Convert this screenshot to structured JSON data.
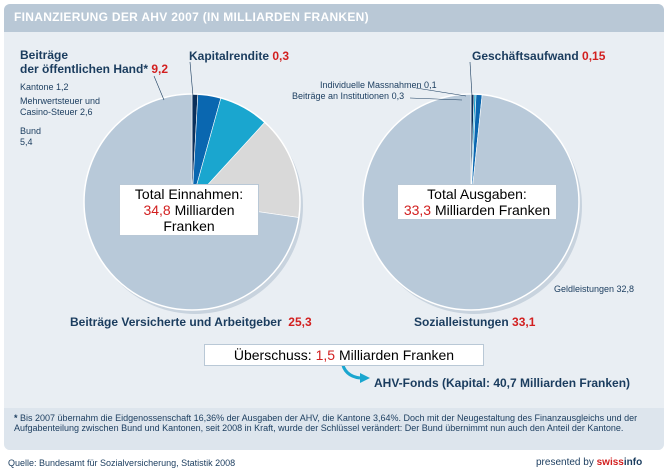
{
  "header": {
    "title": "FINANZIERUNG DER AHV 2007 (IN MILLIARDEN FRANKEN)"
  },
  "income": {
    "public_label_line1": "Beiträge",
    "public_label_line2": "der öffentlichen Hand*",
    "public_value": "9,2",
    "cantons_label": "Kantone 1,2",
    "vat_label_line1": "Mehrwertsteuer und",
    "vat_label_line2": "Casino-Steuer  2,6",
    "federal_label_line1": "Bund",
    "federal_label_line2": "5,4",
    "capital_label": "Kapitalrendite",
    "capital_value": "0,3",
    "contributions_label": "Beiträge Versicherte und Arbeitgeber",
    "contributions_value": "25,3",
    "total_line1": "Total Einnahmen:",
    "total_value": "34,8",
    "total_unit": "Milliarden Franken"
  },
  "expenses": {
    "admin_label": "Geschäftsaufwand",
    "admin_value": "0,15",
    "individual_label": "Individuelle Massnahmen 0,1",
    "institutions_label": "Beiträge an Institutionen 0,3",
    "cash_label": "Geldleistungen 32,8",
    "social_label": "Sozialleistungen",
    "social_value": "33,1",
    "total_line1": "Total Ausgaben:",
    "total_value": "33,3",
    "total_unit": "Milliarden Franken"
  },
  "surplus": {
    "label": "Überschuss:",
    "value": "1,5",
    "unit": "Milliarden Franken"
  },
  "fund": {
    "label": "AHV-Fonds (Kapital: 40,7 Milliarden Franken)"
  },
  "footnote": {
    "star": "*",
    "text": "Bis 2007 übernahm die Eidgenossenschaft 16,36% der Ausgaben der AHV, die Kantone 3,64%. Doch mit der Neugestaltung des Finanzausgleichs und der Aufgabenteilung zwischen Bund und Kantonen, seit 2008 in Kraft, wurde der Schlüssel verändert: Der Bund übernimmt nun auch den Anteil der Kantone."
  },
  "source": {
    "text": "Quelle: Bundesamt für Sozialversicherung, Statistik 2008"
  },
  "presented": {
    "prefix": "presented by ",
    "brand_red": "swiss",
    "brand_dark": "info"
  },
  "colors": {
    "pie_main": "#b8c9d9",
    "federal": "#d9d9d9",
    "vat": "#1aa6cf",
    "cantons": "#0a67b0",
    "capital": "#0b2f5a",
    "accent_red": "#d21f1f"
  },
  "chart_data": [
    {
      "type": "pie",
      "title": "Total Einnahmen: 34,8 Milliarden Franken",
      "slices": [
        {
          "label": "Beiträge Versicherte und Arbeitgeber",
          "value": 25.3
        },
        {
          "label": "Bund",
          "value": 5.4
        },
        {
          "label": "Mehrwertsteuer und Casino-Steuer",
          "value": 2.6
        },
        {
          "label": "Kantone",
          "value": 1.2
        },
        {
          "label": "Kapitalrendite",
          "value": 0.3
        }
      ]
    },
    {
      "type": "pie",
      "title": "Total Ausgaben: 33,3 Milliarden Franken",
      "slices": [
        {
          "label": "Geldleistungen",
          "value": 32.8
        },
        {
          "label": "Beiträge an Institutionen",
          "value": 0.3
        },
        {
          "label": "Individuelle Massnahmen",
          "value": 0.1
        },
        {
          "label": "Geschäftsaufwand",
          "value": 0.15
        }
      ]
    }
  ]
}
